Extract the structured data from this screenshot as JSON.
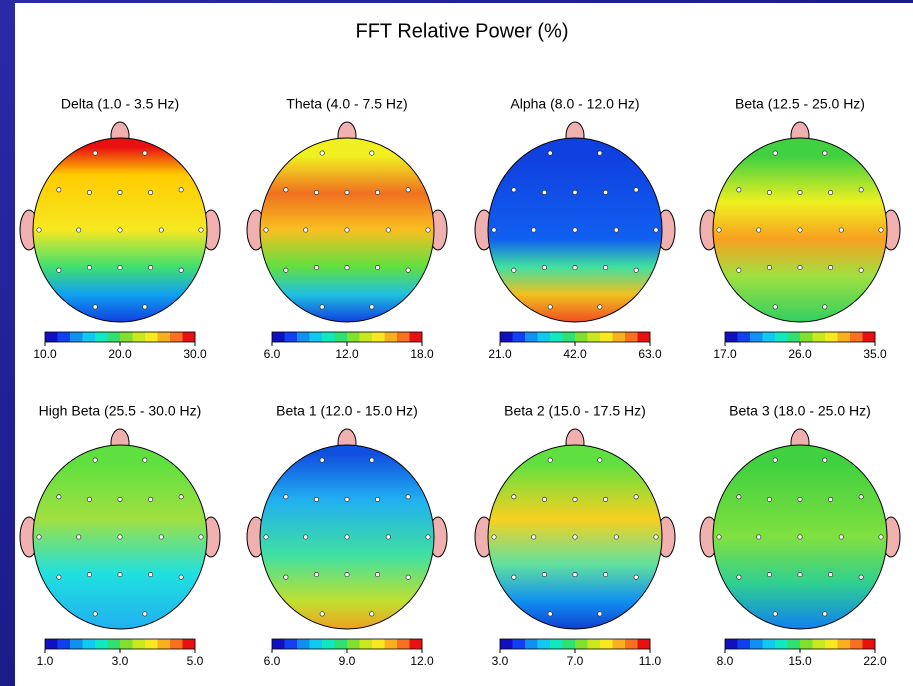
{
  "title": "FFT Relative Power  (%)",
  "maps": [
    {
      "label": "Delta (1.0 - 3.5 Hz)",
      "ticks": [
        {
          "value": 10,
          "label": "10.0"
        },
        {
          "value": 20,
          "label": "20.0"
        },
        {
          "value": 30,
          "label": "30.0"
        }
      ]
    },
    {
      "label": "Theta (4.0 - 7.5 Hz)",
      "ticks": [
        {
          "value": 6,
          "label": "6.0"
        },
        {
          "value": 12,
          "label": "12.0"
        },
        {
          "value": 18,
          "label": "18.0"
        }
      ]
    },
    {
      "label": "Alpha (8.0 - 12.0 Hz)",
      "ticks": [
        {
          "value": 21,
          "label": "21.0"
        },
        {
          "value": 42,
          "label": "42.0"
        },
        {
          "value": 63,
          "label": "63.0"
        }
      ]
    },
    {
      "label": "Beta (12.5 - 25.0 Hz)",
      "ticks": [
        {
          "value": 17,
          "label": "17.0"
        },
        {
          "value": 26,
          "label": "26.0"
        },
        {
          "value": 35,
          "label": "35.0"
        }
      ]
    },
    {
      "label": "High Beta (25.5 - 30.0 Hz)",
      "ticks": [
        {
          "value": 1,
          "label": "1.0"
        },
        {
          "value": 3,
          "label": "3.0"
        },
        {
          "value": 5,
          "label": "5.0"
        }
      ]
    },
    {
      "label": "Beta 1 (12.0 - 15.0 Hz)",
      "ticks": [
        {
          "value": 6,
          "label": "6.0"
        },
        {
          "value": 9,
          "label": "9.0"
        },
        {
          "value": 12,
          "label": "12.0"
        }
      ]
    },
    {
      "label": "Beta 2 (15.0 - 17.5 Hz)",
      "ticks": [
        {
          "value": 3,
          "label": "3.0"
        },
        {
          "value": 7,
          "label": "7.0"
        },
        {
          "value": 11,
          "label": "11.0"
        }
      ]
    },
    {
      "label": "Beta 3 (18.0 - 25.0 Hz)",
      "ticks": [
        {
          "value": 8,
          "label": "8.0"
        },
        {
          "value": 15,
          "label": "15.0"
        },
        {
          "value": 22,
          "label": "22.0"
        }
      ]
    }
  ]
}
